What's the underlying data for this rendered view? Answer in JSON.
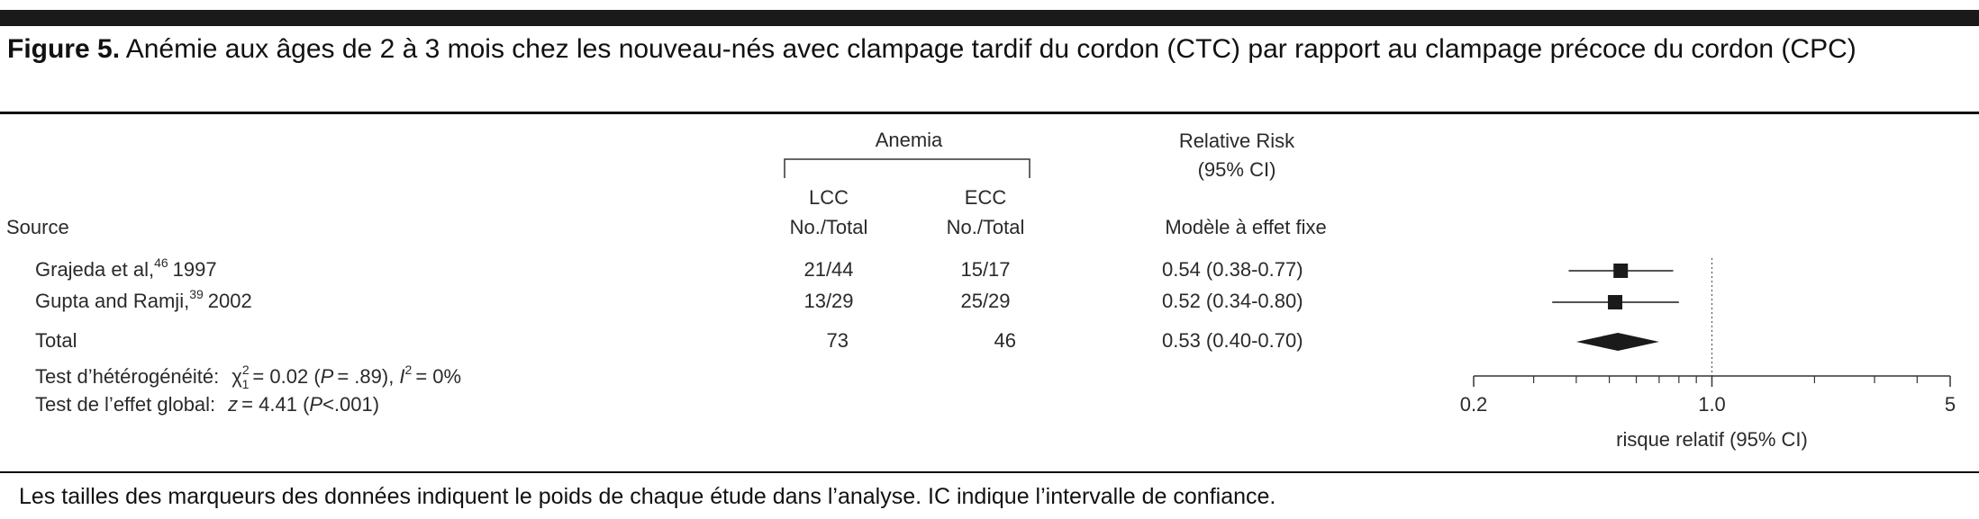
{
  "figure": {
    "label": "Figure 5.",
    "caption": "Anémie aux âges de 2 à 3 mois chez les nouveau-nés avec clampage tardif du cordon (CTC) par rapport au clampage précoce du cordon (CPC)",
    "footnote": "Les tailles des marqueurs des données indiquent le poids de chaque étude dans l’analyse. IC indique l’intervalle de confiance."
  },
  "chart_data": {
    "type": "forest",
    "headers": {
      "source": "Source",
      "group": "Anemia",
      "lcc": "LCC",
      "ecc": "ECC",
      "lcc_sub": "No./Total",
      "ecc_sub": "No./Total",
      "rr": "Relative Risk",
      "rr_ci": "(95% CI)",
      "model": "Modèle à effet fixe"
    },
    "studies": [
      {
        "source": "Grajeda et al,",
        "ref": "46",
        "year": "1997",
        "lcc": "21/44",
        "ecc": "15/17",
        "value": 0.54,
        "ci": [
          0.38,
          0.77
        ],
        "value_label": "0.54 (0.38-0.77)"
      },
      {
        "source": "Gupta and Ramji,",
        "ref": "39",
        "year": "2002",
        "lcc": "13/29",
        "ecc": "25/29",
        "value": 0.52,
        "ci": [
          0.34,
          0.8
        ],
        "value_label": "0.52 (0.34-0.80)"
      }
    ],
    "total": {
      "source": "Total",
      "lcc": 73,
      "ecc": 46,
      "value": 0.53,
      "ci": [
        0.4,
        0.7
      ],
      "value_label": "0.53 (0.40-0.70)"
    },
    "heterogeneity": {
      "label": "Test d’hétérogénéité:",
      "chi": "χ",
      "chi_sup": "2",
      "chi_sub": "1",
      "chi_value": "= 0.02 (",
      "p": "P",
      "p_value": "= .89), ",
      "i": "I",
      "i_sup": "2",
      "i_value": "= 0%"
    },
    "overall": {
      "label": "Test de l’effet global:",
      "z": "z",
      "z_value": "= 4.41 (",
      "p": "P",
      "p_value": "<.001)"
    },
    "xlabel": "risque relatif (95% CI)",
    "log_scale": true,
    "xlim": [
      0.2,
      5
    ],
    "xticks": [
      0.2,
      {
        "value": 1,
        "label": "1.0"
      },
      5
    ],
    "minor_xticks": [
      0.3,
      0.4,
      0.5,
      0.6,
      0.7,
      0.8,
      0.9,
      2,
      3,
      4
    ],
    "reference_line": 1,
    "color": "#1a1a1a"
  }
}
